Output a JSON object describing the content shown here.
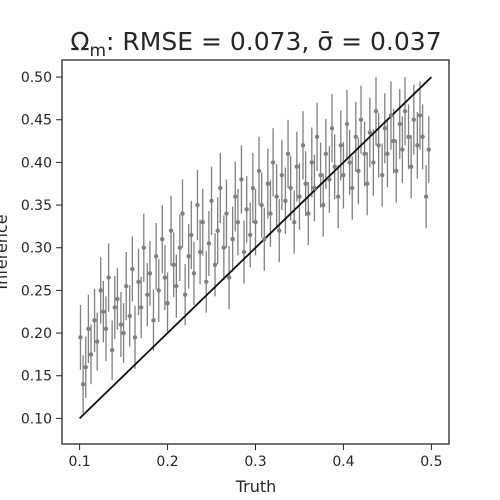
{
  "chart_data": {
    "type": "scatter",
    "title": "Ω_m: RMSE = 0.073, σ̄ = 0.037",
    "title_parts": {
      "symbol": "Ω",
      "subscript": "m",
      "rmse_text": ": RMSE = 0.073, ",
      "sigma_symbol": "σ̄",
      "sigma_text": " = 0.037"
    },
    "xlabel": "Truth",
    "ylabel": "Inference",
    "xlim": [
      0.08,
      0.52
    ],
    "ylim": [
      0.07,
      0.52
    ],
    "xticks": [
      0.1,
      0.2,
      0.3,
      0.4,
      0.5
    ],
    "xtick_labels": [
      "0.1",
      "0.2",
      "0.3",
      "0.4",
      "0.5"
    ],
    "yticks": [
      0.1,
      0.15,
      0.2,
      0.25,
      0.3,
      0.35,
      0.4,
      0.45,
      0.5
    ],
    "ytick_labels": [
      "0.10",
      "0.15",
      "0.20",
      "0.25",
      "0.30",
      "0.35",
      "0.40",
      "0.45",
      "0.50"
    ],
    "grid": false,
    "reference_line": {
      "from": [
        0.1,
        0.1
      ],
      "to": [
        0.5,
        0.5
      ]
    },
    "colors": {
      "points": "#808080",
      "reference_line": "#111111"
    },
    "points": [
      [
        0.101,
        0.195,
        0.038
      ],
      [
        0.104,
        0.14,
        0.034
      ],
      [
        0.107,
        0.16,
        0.036
      ],
      [
        0.11,
        0.205,
        0.04
      ],
      [
        0.113,
        0.175,
        0.035
      ],
      [
        0.117,
        0.215,
        0.037
      ],
      [
        0.12,
        0.19,
        0.034
      ],
      [
        0.124,
        0.25,
        0.039
      ],
      [
        0.127,
        0.225,
        0.036
      ],
      [
        0.13,
        0.205,
        0.038
      ],
      [
        0.133,
        0.265,
        0.04
      ],
      [
        0.137,
        0.18,
        0.035
      ],
      [
        0.14,
        0.23,
        0.037
      ],
      [
        0.143,
        0.24,
        0.036
      ],
      [
        0.147,
        0.21,
        0.038
      ],
      [
        0.15,
        0.2,
        0.035
      ],
      [
        0.153,
        0.255,
        0.04
      ],
      [
        0.157,
        0.22,
        0.036
      ],
      [
        0.16,
        0.275,
        0.038
      ],
      [
        0.163,
        0.195,
        0.037
      ],
      [
        0.167,
        0.26,
        0.039
      ],
      [
        0.17,
        0.23,
        0.036
      ],
      [
        0.173,
        0.3,
        0.04
      ],
      [
        0.177,
        0.245,
        0.037
      ],
      [
        0.18,
        0.27,
        0.038
      ],
      [
        0.184,
        0.215,
        0.036
      ],
      [
        0.187,
        0.29,
        0.039
      ],
      [
        0.19,
        0.25,
        0.037
      ],
      [
        0.194,
        0.31,
        0.04
      ],
      [
        0.197,
        0.265,
        0.038
      ],
      [
        0.2,
        0.235,
        0.036
      ],
      [
        0.204,
        0.32,
        0.041
      ],
      [
        0.207,
        0.28,
        0.038
      ],
      [
        0.21,
        0.255,
        0.037
      ],
      [
        0.214,
        0.3,
        0.039
      ],
      [
        0.217,
        0.34,
        0.04
      ],
      [
        0.22,
        0.245,
        0.036
      ],
      [
        0.224,
        0.29,
        0.038
      ],
      [
        0.227,
        0.315,
        0.04
      ],
      [
        0.23,
        0.27,
        0.037
      ],
      [
        0.234,
        0.35,
        0.041
      ],
      [
        0.237,
        0.295,
        0.038
      ],
      [
        0.24,
        0.33,
        0.039
      ],
      [
        0.244,
        0.26,
        0.036
      ],
      [
        0.247,
        0.305,
        0.038
      ],
      [
        0.25,
        0.355,
        0.04
      ],
      [
        0.254,
        0.28,
        0.037
      ],
      [
        0.257,
        0.32,
        0.039
      ],
      [
        0.26,
        0.37,
        0.041
      ],
      [
        0.264,
        0.3,
        0.038
      ],
      [
        0.267,
        0.34,
        0.04
      ],
      [
        0.27,
        0.265,
        0.037
      ],
      [
        0.274,
        0.31,
        0.038
      ],
      [
        0.277,
        0.36,
        0.041
      ],
      [
        0.28,
        0.33,
        0.039
      ],
      [
        0.284,
        0.38,
        0.04
      ],
      [
        0.287,
        0.295,
        0.037
      ],
      [
        0.29,
        0.345,
        0.039
      ],
      [
        0.294,
        0.315,
        0.038
      ],
      [
        0.297,
        0.37,
        0.041
      ],
      [
        0.3,
        0.33,
        0.039
      ],
      [
        0.304,
        0.39,
        0.04
      ],
      [
        0.307,
        0.35,
        0.038
      ],
      [
        0.31,
        0.31,
        0.037
      ],
      [
        0.314,
        0.375,
        0.041
      ],
      [
        0.317,
        0.34,
        0.039
      ],
      [
        0.32,
        0.4,
        0.04
      ],
      [
        0.324,
        0.36,
        0.038
      ],
      [
        0.327,
        0.32,
        0.037
      ],
      [
        0.33,
        0.385,
        0.041
      ],
      [
        0.334,
        0.355,
        0.039
      ],
      [
        0.337,
        0.41,
        0.04
      ],
      [
        0.34,
        0.37,
        0.038
      ],
      [
        0.344,
        0.33,
        0.037
      ],
      [
        0.347,
        0.395,
        0.041
      ],
      [
        0.35,
        0.36,
        0.039
      ],
      [
        0.354,
        0.42,
        0.04
      ],
      [
        0.357,
        0.375,
        0.038
      ],
      [
        0.36,
        0.34,
        0.037
      ],
      [
        0.364,
        0.4,
        0.041
      ],
      [
        0.367,
        0.37,
        0.039
      ],
      [
        0.37,
        0.43,
        0.04
      ],
      [
        0.374,
        0.385,
        0.038
      ],
      [
        0.377,
        0.35,
        0.037
      ],
      [
        0.38,
        0.41,
        0.041
      ],
      [
        0.384,
        0.38,
        0.039
      ],
      [
        0.387,
        0.44,
        0.04
      ],
      [
        0.39,
        0.395,
        0.038
      ],
      [
        0.394,
        0.36,
        0.037
      ],
      [
        0.397,
        0.42,
        0.041
      ],
      [
        0.4,
        0.385,
        0.039
      ],
      [
        0.404,
        0.445,
        0.04
      ],
      [
        0.407,
        0.4,
        0.038
      ],
      [
        0.41,
        0.37,
        0.037
      ],
      [
        0.414,
        0.43,
        0.041
      ],
      [
        0.417,
        0.39,
        0.039
      ],
      [
        0.42,
        0.45,
        0.04
      ],
      [
        0.424,
        0.41,
        0.038
      ],
      [
        0.427,
        0.375,
        0.037
      ],
      [
        0.43,
        0.435,
        0.041
      ],
      [
        0.434,
        0.4,
        0.039
      ],
      [
        0.437,
        0.46,
        0.04
      ],
      [
        0.44,
        0.42,
        0.038
      ],
      [
        0.444,
        0.385,
        0.037
      ],
      [
        0.447,
        0.44,
        0.041
      ],
      [
        0.45,
        0.41,
        0.039
      ],
      [
        0.454,
        0.455,
        0.04
      ],
      [
        0.457,
        0.425,
        0.038
      ],
      [
        0.46,
        0.39,
        0.037
      ],
      [
        0.464,
        0.445,
        0.041
      ],
      [
        0.467,
        0.415,
        0.039
      ],
      [
        0.47,
        0.46,
        0.04
      ],
      [
        0.474,
        0.43,
        0.038
      ],
      [
        0.477,
        0.395,
        0.037
      ],
      [
        0.48,
        0.45,
        0.041
      ],
      [
        0.484,
        0.42,
        0.039
      ],
      [
        0.487,
        0.455,
        0.04
      ],
      [
        0.49,
        0.43,
        0.038
      ],
      [
        0.494,
        0.36,
        0.037
      ],
      [
        0.497,
        0.415,
        0.039
      ]
    ]
  }
}
